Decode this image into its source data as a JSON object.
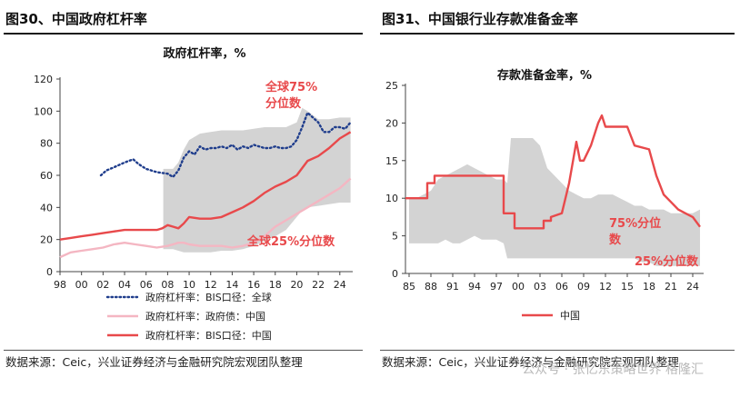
{
  "charts": [
    {
      "heading": "图30、中国政府杠杆率",
      "source": "数据来源：Ceic，兴业证券经济与金融研究院宏观团队整理",
      "chart_data": {
        "type": "line",
        "title": "政府杠杆率，%",
        "x_ticks": [
          "98",
          "00",
          "02",
          "04",
          "06",
          "08",
          "10",
          "12",
          "14",
          "16",
          "18",
          "20",
          "22",
          "24"
        ],
        "xlim": [
          1998,
          2025.2
        ],
        "ylim": [
          0,
          120
        ],
        "y_ticks": [
          0,
          20,
          40,
          60,
          80,
          100,
          120
        ],
        "band": {
          "upper_label": "全球75%分位数",
          "lower_label": "全球25%分位数",
          "x": [
            2007.6,
            2008.5,
            2009.0,
            2009.5,
            2010.0,
            2011.0,
            2012.0,
            2013.0,
            2014.0,
            2015.0,
            2016.0,
            2017.0,
            2018.0,
            2019.0,
            2020.0,
            2020.5,
            2021.0,
            2022.0,
            2023.0,
            2024.0,
            2025.0
          ],
          "upper": [
            64,
            64,
            68,
            76,
            82,
            86,
            87,
            88,
            88,
            88,
            89,
            90,
            90,
            90,
            93,
            102,
            100,
            95,
            95,
            96,
            96
          ],
          "lower": [
            14,
            14,
            13,
            12,
            12,
            12,
            12,
            13,
            13,
            14,
            16,
            19,
            22,
            26,
            34,
            38,
            40,
            41,
            42,
            43,
            43
          ]
        },
        "series": [
          {
            "name": "政府杠杆率：BIS口径：全球",
            "color": "#1f3d8c",
            "style": "dotted",
            "x": [
              2001.8,
              2002.3,
              2003.0,
              2004.0,
              2004.8,
              2005.3,
              2006.0,
              2007.0,
              2008.0,
              2008.5,
              2009.0,
              2009.5,
              2010.0,
              2010.5,
              2011.0,
              2011.5,
              2012.0,
              2012.5,
              2013.0,
              2013.5,
              2014.0,
              2014.5,
              2015.0,
              2015.5,
              2016.0,
              2016.5,
              2017.0,
              2017.5,
              2018.0,
              2018.5,
              2019.0,
              2019.5,
              2020.0,
              2020.5,
              2021.0,
              2021.5,
              2022.0,
              2022.5,
              2023.0,
              2023.5,
              2024.0,
              2024.5,
              2025.0
            ],
            "y": [
              60,
              63,
              65,
              68,
              70,
              67,
              64,
              62,
              61,
              59,
              63,
              71,
              75,
              73,
              78,
              76,
              77,
              77,
              78,
              77,
              79,
              76,
              78,
              77,
              79,
              78,
              77,
              77,
              78,
              77,
              77,
              78,
              82,
              90,
              99,
              96,
              93,
              87,
              87,
              90,
              90,
              89,
              93
            ]
          },
          {
            "name": "政府杠杆率：政府债：中国",
            "color": "#f4b6c2",
            "style": "solid",
            "x": [
              1998.0,
              1999.0,
              2000.0,
              2001.0,
              2002.0,
              2003.0,
              2004.0,
              2005.0,
              2006.0,
              2007.0,
              2008.0,
              2008.5,
              2009.0,
              2009.5,
              2010.0,
              2011.0,
              2012.0,
              2013.0,
              2014.0,
              2015.0,
              2016.0,
              2017.0,
              2018.0,
              2019.0,
              2020.0,
              2021.0,
              2022.0,
              2023.0,
              2024.0,
              2025.0
            ],
            "y": [
              9,
              12,
              13,
              14,
              15,
              17,
              18,
              17,
              16,
              15,
              16,
              17,
              18,
              18,
              17,
              16,
              16,
              16,
              15,
              16,
              18,
              22,
              28,
              32,
              36,
              40,
              44,
              48,
              52,
              58
            ]
          },
          {
            "name": "政府杠杆率：BIS口径：中国",
            "color": "#e8494b",
            "style": "solid",
            "x": [
              1998.0,
              1999.0,
              2000.0,
              2001.0,
              2002.0,
              2003.0,
              2004.0,
              2005.0,
              2006.0,
              2007.0,
              2007.5,
              2008.0,
              2008.5,
              2009.0,
              2009.5,
              2010.0,
              2011.0,
              2012.0,
              2013.0,
              2014.0,
              2015.0,
              2016.0,
              2017.0,
              2018.0,
              2019.0,
              2020.0,
              2021.0,
              2022.0,
              2023.0,
              2024.0,
              2025.0
            ],
            "y": [
              20,
              21,
              22,
              23,
              24,
              25,
              26,
              26,
              26,
              26,
              27,
              29,
              28,
              27,
              30,
              34,
              33,
              33,
              34,
              37,
              40,
              44,
              49,
              53,
              56,
              60,
              69,
              72,
              77,
              83,
              87
            ]
          }
        ]
      }
    },
    {
      "heading": "图31、中国银行业存款准备金率",
      "source": "数据来源：Ceic，兴业证券经济与金融研究院宏观团队整理",
      "chart_data": {
        "type": "line",
        "title": "存款准备金率，%",
        "x_ticks": [
          "85",
          "88",
          "91",
          "94",
          "97",
          "00",
          "03",
          "06",
          "09",
          "12",
          "15",
          "18",
          "21",
          "24"
        ],
        "xlim": [
          1984.5,
          2025.5
        ],
        "ylim": [
          0,
          25
        ],
        "y_ticks": [
          0,
          5,
          10,
          15,
          20,
          25
        ],
        "band": {
          "upper_label": "75%分位数",
          "lower_label": "25%分位数",
          "x": [
            1985,
            1986,
            1988,
            1989,
            1990,
            1991,
            1992,
            1993,
            1994,
            1995,
            1996,
            1997,
            1998,
            1998.5,
            1999,
            2000,
            2001,
            2002,
            2003,
            2004,
            2005,
            2006,
            2007,
            2008,
            2009,
            2010,
            2011,
            2012,
            2013,
            2014,
            2015,
            2016,
            2017,
            2018,
            2019,
            2020,
            2021,
            2022,
            2023,
            2024,
            2025
          ],
          "upper": [
            10,
            10,
            11,
            12.5,
            13,
            13.5,
            14,
            14.5,
            14,
            13.5,
            13,
            12.5,
            12.5,
            12,
            18,
            18,
            18,
            18,
            17,
            14,
            13,
            12,
            11,
            10.5,
            10,
            10,
            10.5,
            10.5,
            10.5,
            10,
            9.5,
            9,
            9,
            8.5,
            8.5,
            8.5,
            8,
            8,
            8,
            8,
            8.5
          ],
          "lower": [
            4,
            4,
            4,
            4,
            4.5,
            4,
            4,
            4.5,
            5,
            4.5,
            4.5,
            4.5,
            4,
            2,
            2,
            2,
            2,
            2,
            2,
            2,
            2,
            2,
            2,
            2,
            2,
            2,
            2,
            2,
            2,
            2,
            2,
            2,
            1.5,
            1.5,
            1,
            1,
            1,
            1,
            1,
            1,
            1
          ]
        },
        "series": [
          {
            "name": "中国",
            "color": "#e8494b",
            "style": "solid",
            "x": [
              1984.5,
              1987.5,
              1987.5,
              1988.5,
              1988.5,
              1998.0,
              1998.0,
              1999.5,
              1999.5,
              2003.5,
              2003.5,
              2004.5,
              2004.5,
              2006.0,
              2007.0,
              2008.0,
              2008.5,
              2009.0,
              2010.0,
              2011.0,
              2011.5,
              2012.0,
              2015.0,
              2016.0,
              2018.0,
              2019.0,
              2020.0,
              2021.0,
              2022.0,
              2023.0,
              2024.0,
              2025.0
            ],
            "y": [
              10,
              10,
              12,
              12,
              13,
              13,
              8,
              8,
              6,
              6,
              7,
              7,
              7.5,
              8,
              12,
              17.5,
              15,
              15,
              17,
              20,
              21,
              19.5,
              19.5,
              17,
              16.5,
              13,
              10.5,
              9.5,
              8.5,
              8,
              7.5,
              6.2
            ]
          }
        ]
      }
    }
  ],
  "watermark": "公众号 · 张忆东策略世界 格隆汇"
}
